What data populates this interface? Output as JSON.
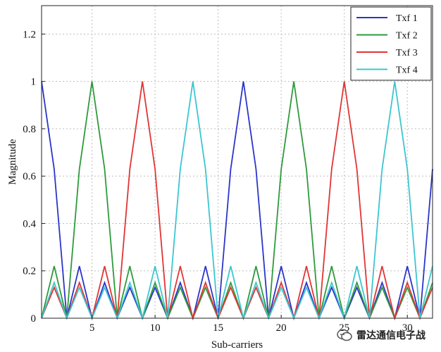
{
  "chart_data": {
    "type": "line",
    "xlabel": "Sub-carriers",
    "ylabel": "Magnitude",
    "xlim": [
      1,
      32
    ],
    "ylim": [
      0,
      1.32
    ],
    "xticks": [
      5,
      10,
      15,
      20,
      25,
      30
    ],
    "yticks": [
      0,
      0.2,
      0.4,
      0.6,
      0.8,
      1,
      1.2
    ],
    "ytick_labels": [
      "0",
      "0.2",
      "0.4",
      "0.6",
      "0.8",
      "1",
      "1.2"
    ],
    "grid": true,
    "legend_position": "top-right",
    "x": [
      1,
      2,
      3,
      4,
      5,
      6,
      7,
      8,
      9,
      10,
      11,
      12,
      13,
      14,
      15,
      16,
      17,
      18,
      19,
      20,
      21,
      22,
      23,
      24,
      25,
      26,
      27,
      28,
      29,
      30,
      31,
      32
    ],
    "series": [
      {
        "name": "Txf 1",
        "color": "#2b35c9",
        "values": [
          1,
          0.63,
          0,
          0.22,
          0,
          0.15,
          0,
          0.13,
          0,
          0.13,
          0,
          0.15,
          0,
          0.22,
          0,
          0.63,
          1,
          0.63,
          0,
          0.22,
          0,
          0.15,
          0,
          0.13,
          0,
          0.13,
          0,
          0.15,
          0,
          0.22,
          0,
          0.63
        ]
      },
      {
        "name": "Txf 2",
        "color": "#2e9a3c",
        "values": [
          0,
          0.22,
          0,
          0.63,
          1,
          0.63,
          0,
          0.22,
          0,
          0.15,
          0,
          0.13,
          0,
          0.13,
          0,
          0.15,
          0,
          0.22,
          0,
          0.63,
          1,
          0.63,
          0,
          0.22,
          0,
          0.15,
          0,
          0.13,
          0,
          0.13,
          0,
          0.15
        ]
      },
      {
        "name": "Txf 3",
        "color": "#e03535",
        "values": [
          0,
          0.13,
          0,
          0.15,
          0,
          0.22,
          0,
          0.63,
          1,
          0.63,
          0,
          0.22,
          0,
          0.15,
          0,
          0.13,
          0,
          0.13,
          0,
          0.15,
          0,
          0.22,
          0,
          0.63,
          1,
          0.63,
          0,
          0.22,
          0,
          0.15,
          0,
          0.13
        ]
      },
      {
        "name": "Txf 4",
        "color": "#3cc6cf",
        "values": [
          0,
          0.15,
          0,
          0.13,
          0,
          0.13,
          0,
          0.15,
          0,
          0.22,
          0,
          0.63,
          1,
          0.63,
          0,
          0.22,
          0,
          0.15,
          0,
          0.13,
          0,
          0.13,
          0,
          0.15,
          0,
          0.22,
          0,
          0.63,
          1,
          0.63,
          0,
          0.22
        ]
      }
    ]
  },
  "watermark": {
    "text": "雷达通信电子战",
    "icon": "chat-bubble-icon"
  }
}
